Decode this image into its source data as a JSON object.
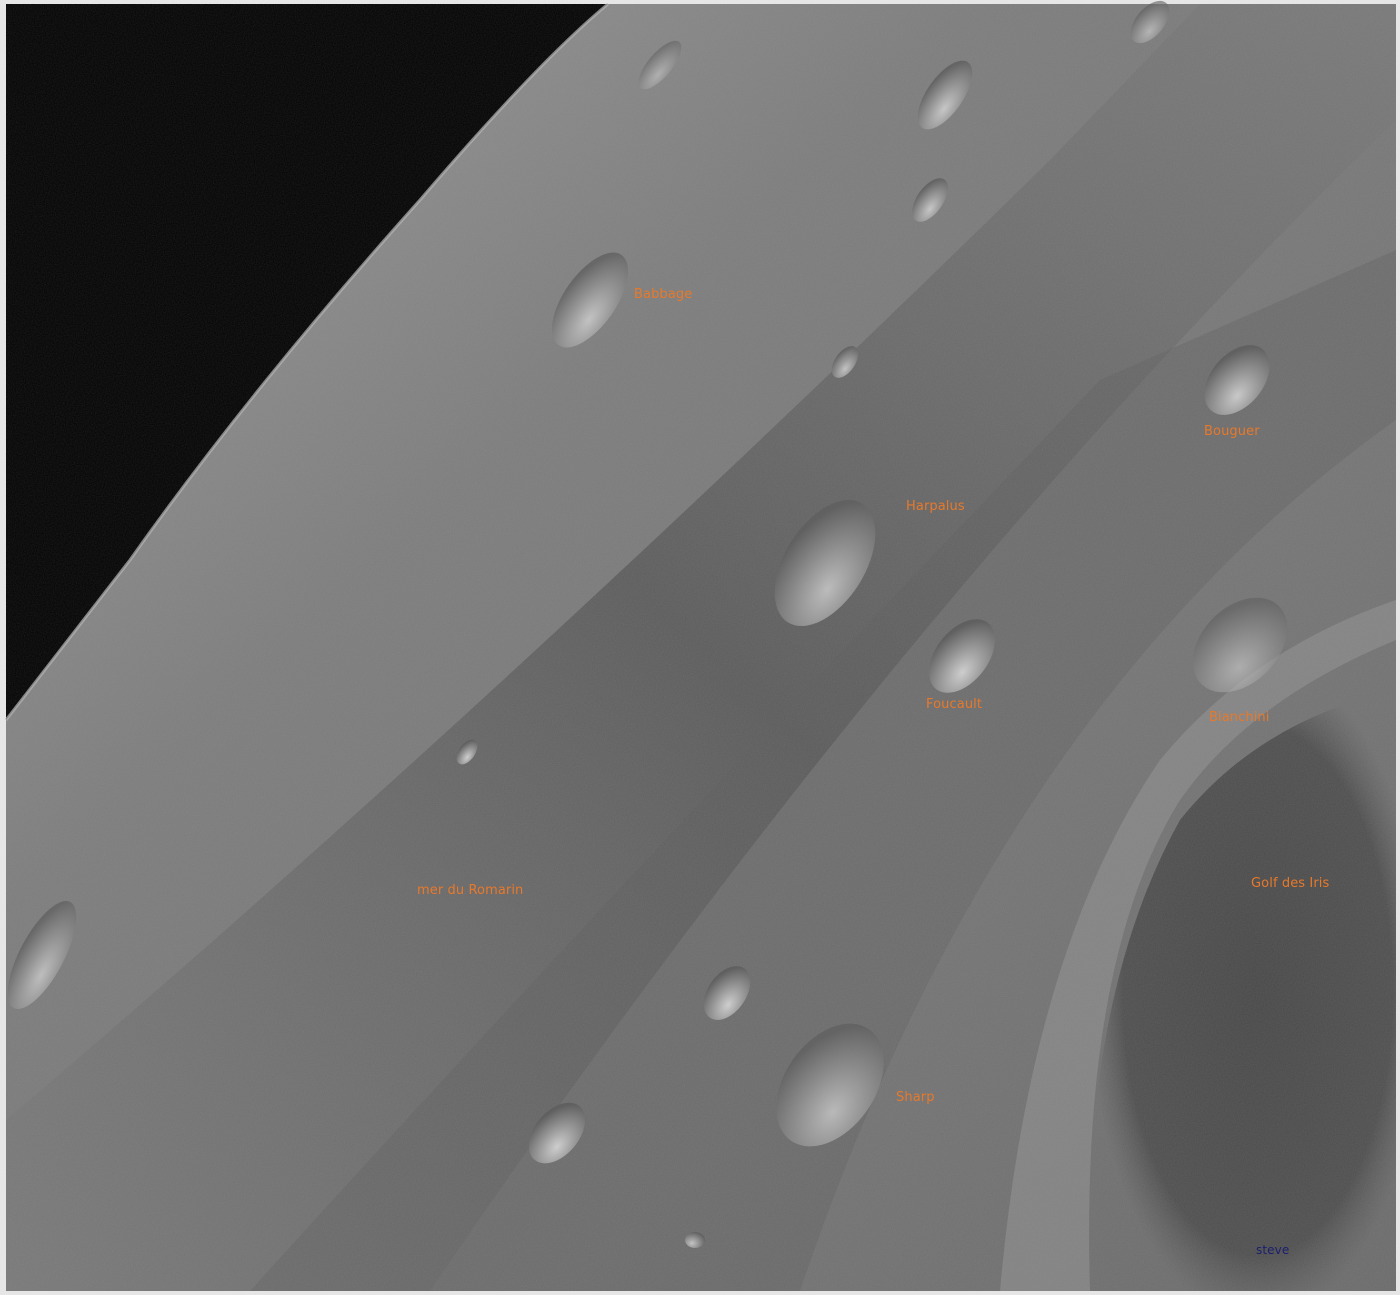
{
  "photo": {
    "subject": "lunar-surface-photograph",
    "colors": {
      "space": "#000000",
      "surface_light": "#8e8e8e",
      "surface_mid": "#6f6f6f",
      "mare_dark": "#4a4a4a",
      "label": "#e8792a",
      "signature": "#1b1f6e"
    }
  },
  "labels": {
    "babbage": "Babbage",
    "bouguer": "Bouguer",
    "harpalus": "Harpalus",
    "foucault": "Foucault",
    "bianchini": "Bianchini",
    "mer_du_romarin": "mer du Romarin",
    "golf_des_iris": "Golf des Iris",
    "sharp": "Sharp"
  },
  "signature": "steve"
}
